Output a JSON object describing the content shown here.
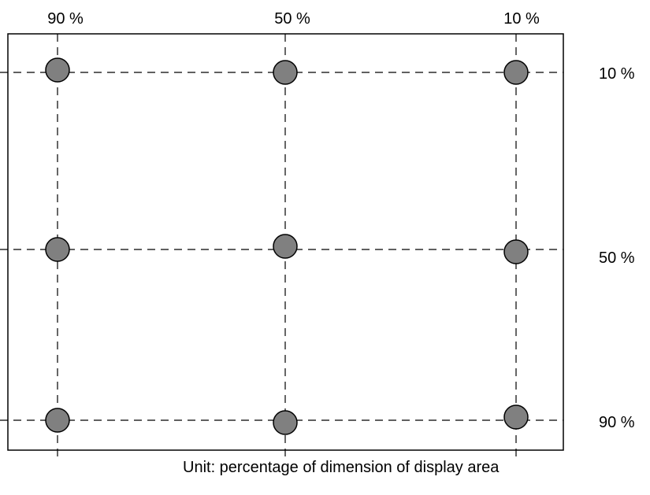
{
  "diagram": {
    "column_labels": [
      "90 %",
      "50 %",
      "10 %"
    ],
    "row_labels": [
      "10 %",
      "50 %",
      "90 %"
    ],
    "caption": "Unit: percentage of dimension of display area",
    "marker_fill": "#808080",
    "line_color": "#000000"
  }
}
